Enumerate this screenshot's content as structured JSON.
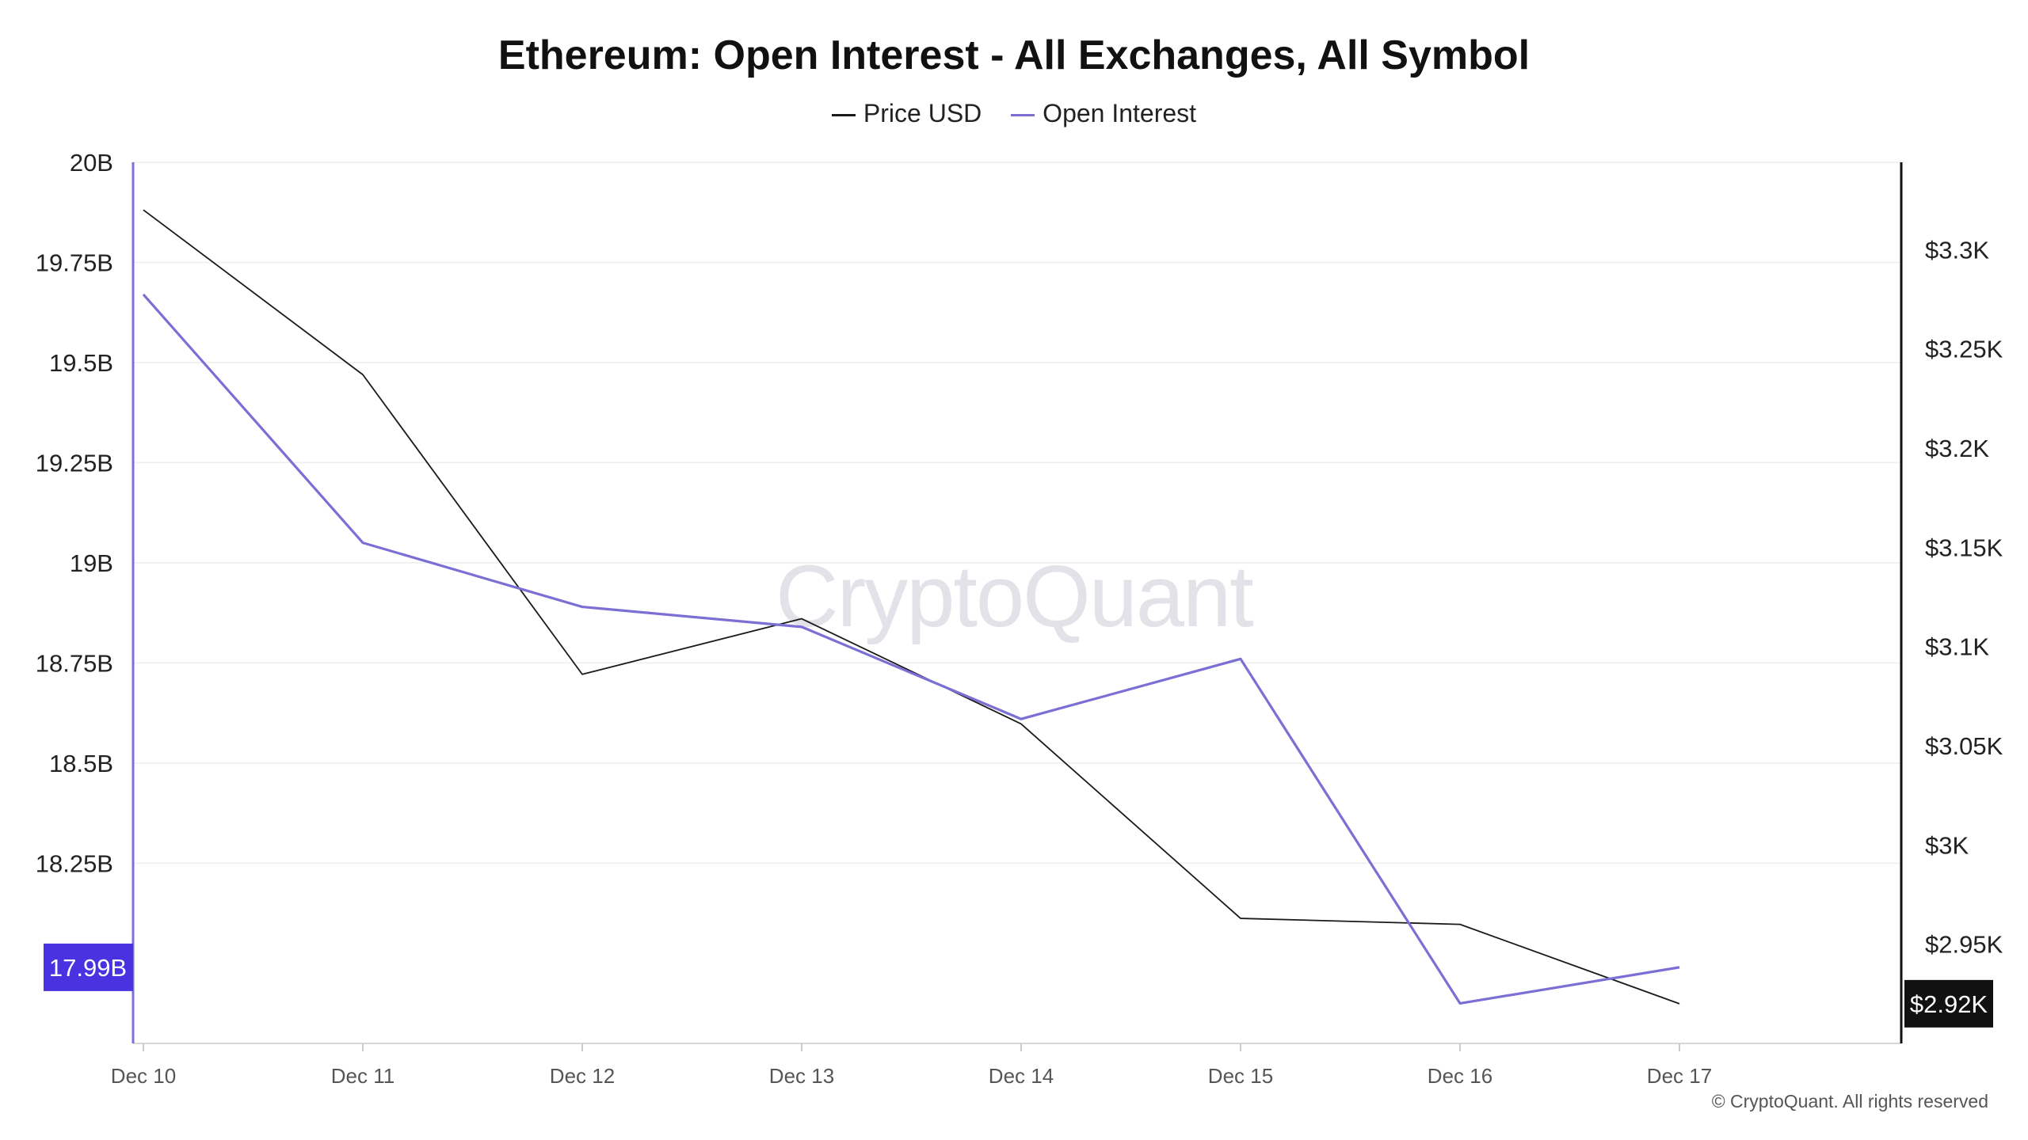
{
  "chart_data": {
    "type": "line",
    "title": "Ethereum: Open Interest - All Exchanges, All Symbol",
    "categories": [
      "Dec 10",
      "Dec 11",
      "Dec 12",
      "Dec 13",
      "Dec 14",
      "Dec 15",
      "Dec 16",
      "Dec 17"
    ],
    "series": [
      {
        "name": "Price USD",
        "axis": "right",
        "color": "#1a1a1a",
        "values": [
          3320,
          3237,
          3086,
          3114,
          3061,
          2963,
          2960,
          2920
        ]
      },
      {
        "name": "Open Interest",
        "axis": "left",
        "color": "#7b6fd6",
        "values": [
          19.67,
          19.05,
          18.89,
          18.84,
          18.61,
          18.76,
          17.9,
          17.99
        ]
      }
    ],
    "left_axis": {
      "ylim": [
        17.8,
        20.0
      ],
      "ticks": [
        18.25,
        18.5,
        18.75,
        19.0,
        19.25,
        19.5,
        19.75,
        20.0
      ],
      "tick_labels": [
        "18.25B",
        "18.5B",
        "18.75B",
        "19B",
        "19.25B",
        "19.5B",
        "19.75B",
        "20B"
      ],
      "current_label": "17.99B",
      "current_value": 17.99,
      "current_color": "#4a32e0"
    },
    "right_axis": {
      "ylim": [
        2900,
        3344
      ],
      "ticks": [
        2950,
        3000,
        3050,
        3100,
        3150,
        3200,
        3250,
        3300
      ],
      "tick_labels": [
        "$2.95K",
        "$3K",
        "$3.05K",
        "$3.1K",
        "$3.15K",
        "$3.2K",
        "$3.25K",
        "$3.3K"
      ],
      "current_label": "$2.92K",
      "current_value": 2920,
      "current_color": "#111111"
    },
    "grid": true,
    "legend_position": "top-center"
  },
  "watermark": "CryptoQuant",
  "copyright": "© CryptoQuant. All rights reserved"
}
